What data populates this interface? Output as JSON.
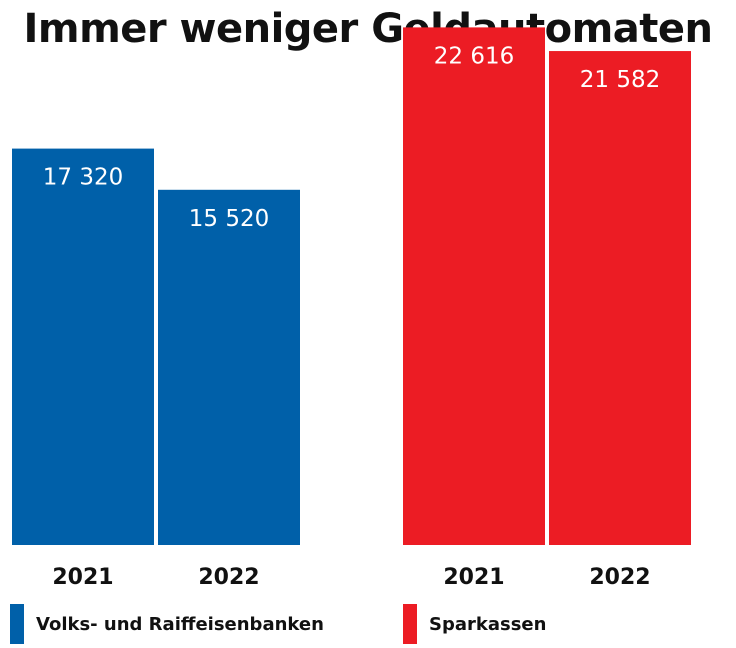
{
  "chart_data": {
    "type": "bar",
    "title": "Immer weniger Geldautomaten",
    "xlabel": "",
    "ylabel": "",
    "ylim": [
      0,
      23000
    ],
    "grid": false,
    "legend_position": "bottom",
    "groups": [
      {
        "name": "Volks- und Raiffeisenbanken",
        "color": "#0060A9",
        "categories": [
          "2021",
          "2022"
        ],
        "values": [
          17320,
          15520
        ],
        "value_labels": [
          "17 320",
          "15 520"
        ]
      },
      {
        "name": "Sparkassen",
        "color": "#EC1C24",
        "categories": [
          "2021",
          "2022"
        ],
        "values": [
          22616,
          21582
        ],
        "value_labels": [
          "22 616",
          "21 582"
        ]
      }
    ]
  }
}
